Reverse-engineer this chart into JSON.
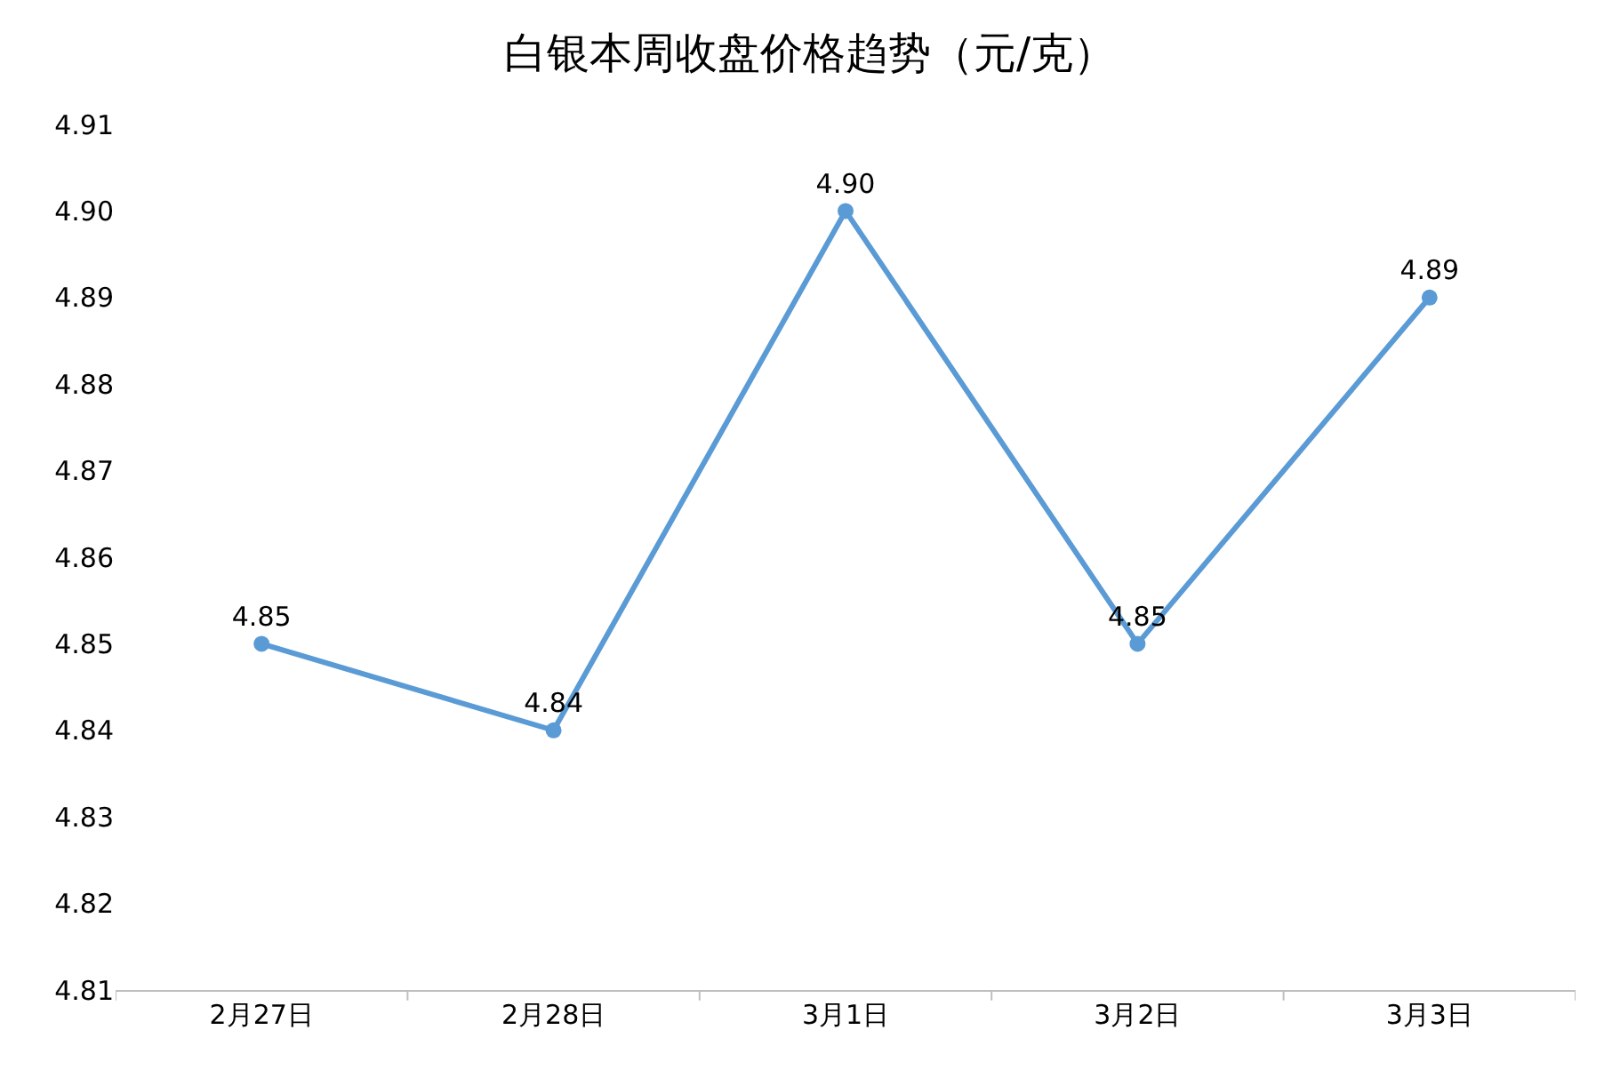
{
  "chart_data": {
    "type": "line",
    "title": "白银本周收盘价格趋势（元/克）",
    "categories": [
      "2月27日",
      "2月28日",
      "3月1日",
      "3月2日",
      "3月3日"
    ],
    "series": [
      {
        "color": "#5b9bd5",
        "values": [
          4.85,
          4.84,
          4.9,
          4.85,
          4.89
        ],
        "value_labels": [
          "4.85",
          "4.84",
          "4.90",
          "4.85",
          "4.89"
        ]
      }
    ],
    "ylim": [
      4.81,
      4.91
    ],
    "yticks": [
      4.81,
      4.82,
      4.83,
      4.84,
      4.85,
      4.86,
      4.87,
      4.88,
      4.89,
      {
        "value": 4.9,
        "label": "4.90"
      },
      4.91
    ],
    "legend": false,
    "marker": "circle",
    "line_style": "solid"
  }
}
